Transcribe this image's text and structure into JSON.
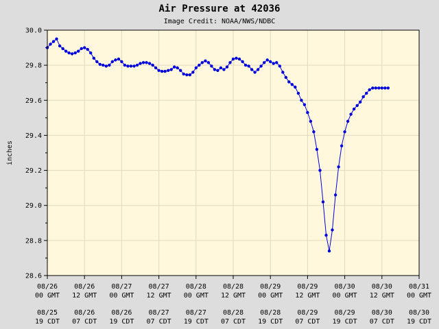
{
  "chart_data": {
    "type": "line",
    "title": "Air Pressure at 42036",
    "subtitle": "Image Credit: NOAA/NWS/NDBC",
    "ylabel": "inches",
    "xlabel": "",
    "ylim": [
      28.6,
      30.0
    ],
    "yticks": [
      "30.0",
      "29.8",
      "29.6",
      "29.4",
      "29.2",
      "29.0",
      "28.8",
      "28.6"
    ],
    "xlim": [
      0,
      120
    ],
    "grid": true,
    "legend": "none",
    "xticks": [
      {
        "x": 0,
        "gmt": [
          "08/26",
          "00 GMT"
        ],
        "cdt": [
          "08/25",
          "19 CDT"
        ]
      },
      {
        "x": 12,
        "gmt": [
          "08/26",
          "12 GMT"
        ],
        "cdt": [
          "08/26",
          "07 CDT"
        ]
      },
      {
        "x": 24,
        "gmt": [
          "08/27",
          "00 GMT"
        ],
        "cdt": [
          "08/26",
          "19 CDT"
        ]
      },
      {
        "x": 36,
        "gmt": [
          "08/27",
          "12 GMT"
        ],
        "cdt": [
          "08/27",
          "07 CDT"
        ]
      },
      {
        "x": 48,
        "gmt": [
          "08/28",
          "00 GMT"
        ],
        "cdt": [
          "08/27",
          "19 CDT"
        ]
      },
      {
        "x": 60,
        "gmt": [
          "08/28",
          "12 GMT"
        ],
        "cdt": [
          "08/28",
          "07 CDT"
        ]
      },
      {
        "x": 72,
        "gmt": [
          "08/29",
          "00 GMT"
        ],
        "cdt": [
          "08/28",
          "19 CDT"
        ]
      },
      {
        "x": 84,
        "gmt": [
          "08/29",
          "12 GMT"
        ],
        "cdt": [
          "08/29",
          "07 CDT"
        ]
      },
      {
        "x": 96,
        "gmt": [
          "08/30",
          "00 GMT"
        ],
        "cdt": [
          "08/29",
          "19 CDT"
        ]
      },
      {
        "x": 108,
        "gmt": [
          "08/30",
          "12 GMT"
        ],
        "cdt": [
          "08/30",
          "07 CDT"
        ]
      },
      {
        "x": 120,
        "gmt": [
          "08/31",
          "00 GMT"
        ],
        "cdt": [
          "08/30",
          "19 CDT"
        ]
      }
    ],
    "series": [
      {
        "color": "#0000dd",
        "x": [
          0,
          1,
          2,
          3,
          4,
          5,
          6,
          7,
          8,
          9,
          10,
          11,
          12,
          13,
          14,
          15,
          16,
          17,
          18,
          19,
          20,
          21,
          22,
          23,
          24,
          25,
          26,
          27,
          28,
          29,
          30,
          31,
          32,
          33,
          34,
          35,
          36,
          37,
          38,
          39,
          40,
          41,
          42,
          43,
          44,
          45,
          46,
          47,
          48,
          49,
          50,
          51,
          52,
          53,
          54,
          55,
          56,
          57,
          58,
          59,
          60,
          61,
          62,
          63,
          64,
          65,
          66,
          67,
          68,
          69,
          70,
          71,
          72,
          73,
          74,
          75,
          76,
          77,
          78,
          79,
          80,
          81,
          82,
          83,
          84,
          85,
          86,
          87,
          88,
          89,
          90,
          91,
          92,
          93,
          94,
          95,
          96,
          97,
          98,
          99,
          100,
          101,
          102,
          103,
          104,
          105,
          106,
          107,
          108,
          109,
          110
        ],
        "y": [
          29.9,
          29.92,
          29.935,
          29.95,
          29.91,
          29.895,
          29.88,
          29.87,
          29.865,
          29.87,
          29.88,
          29.895,
          29.9,
          29.89,
          29.87,
          29.84,
          29.82,
          29.805,
          29.8,
          29.795,
          29.8,
          29.82,
          29.83,
          29.835,
          29.82,
          29.8,
          29.795,
          29.795,
          29.795,
          29.8,
          29.81,
          29.815,
          29.815,
          29.81,
          29.8,
          29.785,
          29.77,
          29.765,
          29.765,
          29.77,
          29.775,
          29.79,
          29.785,
          29.77,
          29.75,
          29.745,
          29.745,
          29.76,
          29.785,
          29.8,
          29.815,
          29.825,
          29.815,
          29.795,
          29.775,
          29.77,
          29.785,
          29.775,
          29.79,
          29.815,
          29.835,
          29.84,
          29.835,
          29.82,
          29.8,
          29.795,
          29.775,
          29.76,
          29.775,
          29.795,
          29.815,
          29.83,
          29.82,
          29.81,
          29.815,
          29.795,
          29.76,
          29.73,
          29.705,
          29.69,
          29.675,
          29.64,
          29.6,
          29.575,
          29.53,
          29.48,
          29.42,
          29.32,
          29.2,
          29.02,
          28.83,
          28.74,
          28.86,
          29.06,
          29.22,
          29.34,
          29.42,
          29.48,
          29.52,
          29.55,
          29.57,
          29.59,
          29.62,
          29.64,
          29.66,
          29.67,
          29.67,
          29.67,
          29.67,
          29.67,
          29.67
        ]
      }
    ]
  }
}
